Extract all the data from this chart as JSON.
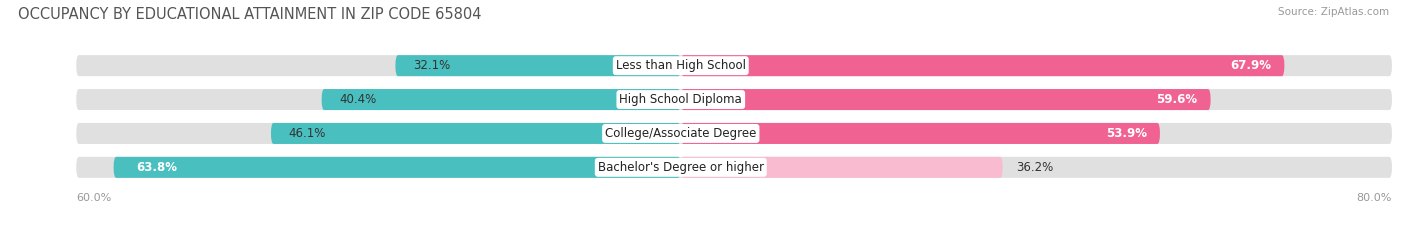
{
  "title": "OCCUPANCY BY EDUCATIONAL ATTAINMENT IN ZIP CODE 65804",
  "source": "Source: ZipAtlas.com",
  "categories": [
    "Less than High School",
    "High School Diploma",
    "College/Associate Degree",
    "Bachelor's Degree or higher"
  ],
  "owner_pct": [
    32.1,
    40.4,
    46.1,
    63.8
  ],
  "renter_pct": [
    67.9,
    59.6,
    53.9,
    36.2
  ],
  "owner_color": "#4abfbf",
  "renter_color_strong": "#f06292",
  "renter_color_weak": "#f8bbd0",
  "bar_bg_color": "#e0e0e0",
  "bg_color": "#ffffff",
  "title_fontsize": 10.5,
  "label_fontsize": 8.5,
  "tick_fontsize": 8,
  "source_fontsize": 7.5,
  "x_left_label": "60.0%",
  "x_right_label": "80.0%",
  "renter_white_text": [
    true,
    true,
    true,
    false
  ],
  "owner_white_text": [
    false,
    false,
    false,
    true
  ]
}
